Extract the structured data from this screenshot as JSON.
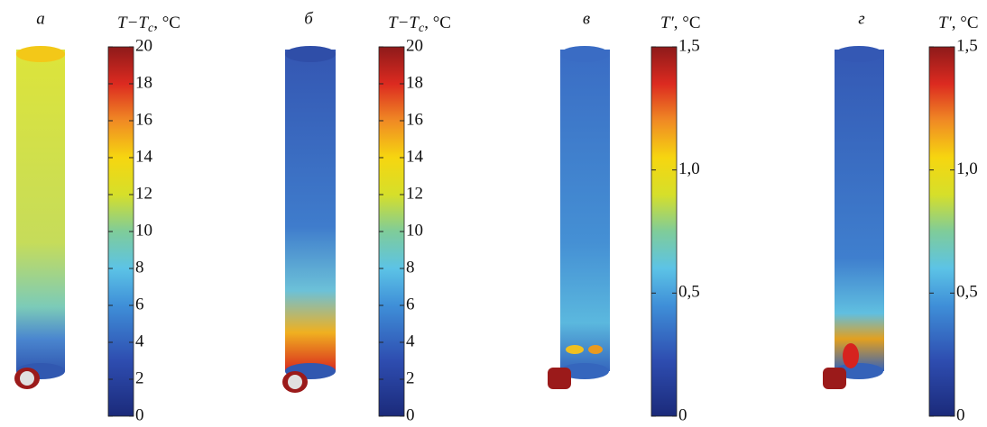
{
  "panels": [
    {
      "label": "а",
      "colorbar": {
        "title": {
          "main": "T−T",
          "sub": "c",
          "unit": ", °C"
        },
        "lim": [
          0,
          20
        ],
        "ticks": [
          0,
          2,
          4,
          6,
          8,
          10,
          12,
          14,
          16,
          18,
          20
        ]
      }
    },
    {
      "label": "б",
      "colorbar": {
        "title": {
          "main": "T−T",
          "sub": "c",
          "unit": ", °C"
        },
        "lim": [
          0,
          20
        ],
        "ticks": [
          0,
          2,
          4,
          6,
          8,
          10,
          12,
          14,
          16,
          18,
          20
        ]
      }
    },
    {
      "label": "в",
      "colorbar": {
        "title": {
          "main": "T′",
          "unit": ", °C"
        },
        "lim": [
          0,
          1.5
        ],
        "ticks": [
          0,
          {
            "value": 0.5,
            "label": "0,5"
          },
          {
            "value": 1,
            "label": "1,0"
          },
          {
            "value": 1.5,
            "label": "1,5"
          }
        ]
      }
    },
    {
      "label": "г",
      "colorbar": {
        "title": {
          "main": "T′",
          "unit": ", °C"
        },
        "lim": [
          0,
          1.5
        ],
        "ticks": [
          0,
          {
            "value": 0.5,
            "label": "0,5"
          },
          {
            "value": 1,
            "label": "1,0"
          },
          {
            "value": 1.5,
            "label": "1,5"
          }
        ]
      }
    }
  ]
}
